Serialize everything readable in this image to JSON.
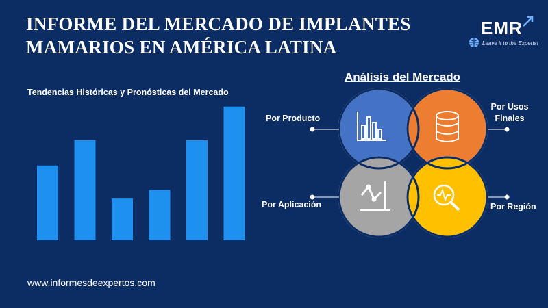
{
  "header": {
    "title_line1": "INFORME DEL MERCADO DE IMPLANTES",
    "title_line2": "MAMARIOS EN AMÉRICA LATINA"
  },
  "logo": {
    "text": "EMR",
    "tagline": "Leave it to the Experts!",
    "colors": {
      "text": "#ffffff",
      "accent": "#6fb1ff"
    }
  },
  "chart_data": {
    "type": "bar",
    "title": "Tendencias Históricas y Pronósticas del Mercado",
    "categories": [
      "",
      "",
      "",
      "",
      "",
      ""
    ],
    "values": [
      113,
      151,
      63,
      76,
      151,
      202
    ],
    "ylim": [
      0,
      210
    ],
    "xlabel": "",
    "ylabel": "",
    "grid": false,
    "bar_color": "#1e90f0"
  },
  "analysis": {
    "title": "Análisis del Mercado",
    "segments": [
      {
        "label": "Por Producto",
        "icon": "bar-chart-icon",
        "color": "#4472c4"
      },
      {
        "label": "Por Usos Finales",
        "icon": "database-icon",
        "color": "#ed7d31"
      },
      {
        "label": "Por Aplicación",
        "icon": "line-chart-icon",
        "color": "#a5a5a5"
      },
      {
        "label": "Por Región",
        "icon": "magnifier-pulse-icon",
        "color": "#ffc000"
      }
    ]
  },
  "footer": {
    "url": "www.informesdeexpertos.com"
  }
}
